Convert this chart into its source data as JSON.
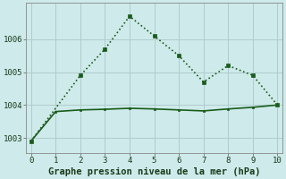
{
  "line1_x": [
    0,
    2,
    3,
    4,
    5,
    6,
    7,
    8,
    9,
    10
  ],
  "line1_y": [
    1002.9,
    1004.9,
    1005.7,
    1006.7,
    1006.1,
    1005.5,
    1004.7,
    1005.2,
    1004.9,
    1004.0
  ],
  "line2_x": [
    0,
    1,
    2,
    3,
    4,
    5,
    6,
    7,
    8,
    9,
    10
  ],
  "line2_y": [
    1002.9,
    1003.8,
    1003.85,
    1003.87,
    1003.9,
    1003.88,
    1003.85,
    1003.82,
    1003.88,
    1003.93,
    1004.0
  ],
  "line1_color": "#1a5c1a",
  "line2_color": "#1a5c1a",
  "bg_color": "#ceeaea",
  "grid_color": "#b0cccc",
  "xlabel": "Graphe pression niveau de la mer (hPa)",
  "xlim": [
    -0.2,
    10.2
  ],
  "ylim": [
    1002.55,
    1007.1
  ],
  "yticks": [
    1003,
    1004,
    1005,
    1006
  ],
  "xticks": [
    0,
    1,
    2,
    3,
    4,
    5,
    6,
    7,
    8,
    9,
    10
  ],
  "tick_fontsize": 6.5,
  "xlabel_fontsize": 7.5
}
